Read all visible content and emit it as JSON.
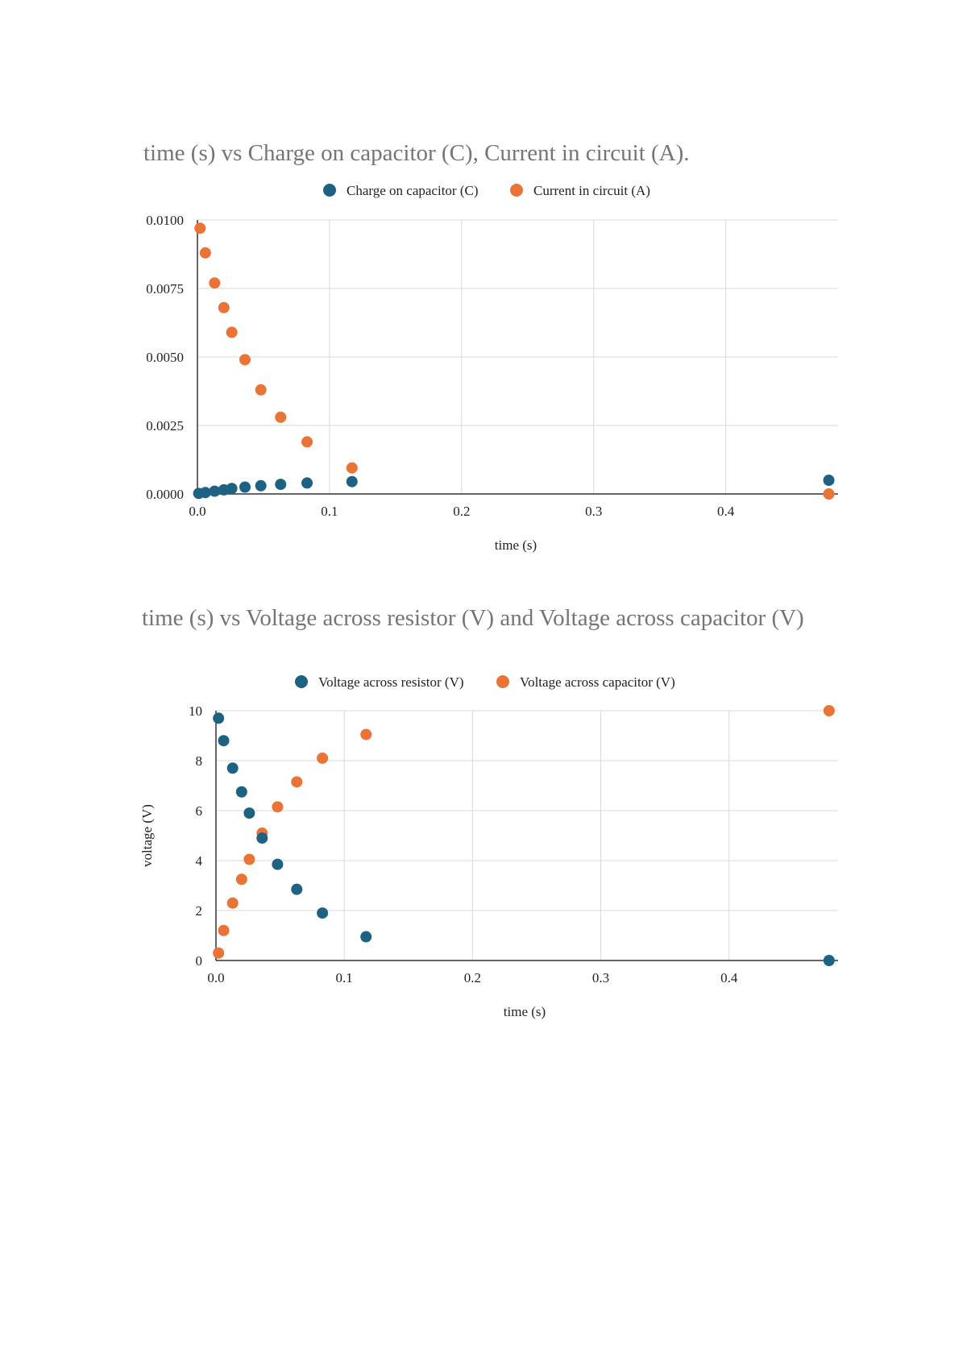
{
  "colors": {
    "series1": "#1d6282",
    "series2": "#ea7336",
    "grid": "#d9d9d9",
    "axis": "#333333",
    "title": "#757575"
  },
  "chart_data": [
    {
      "type": "scatter",
      "title": "time (s) vs Charge on capacitor (C), Current in circuit (A).",
      "xlabel": "time (s)",
      "ylabel": "",
      "xlim": [
        0,
        0.485
      ],
      "ylim": [
        0,
        0.01
      ],
      "xticks": [
        "0.0",
        "0.1",
        "0.2",
        "0.3",
        "0.4"
      ],
      "xtick_values": [
        0,
        0.1,
        0.2,
        0.3,
        0.4
      ],
      "yticks": [
        "0.0000",
        "0.0025",
        "0.0050",
        "0.0075",
        "0.0100"
      ],
      "ytick_values": [
        0,
        0.0025,
        0.005,
        0.0075,
        0.01
      ],
      "grid": true,
      "legend_position": "top",
      "series": [
        {
          "name": "Charge on capacitor (C)",
          "color": "#1d6282",
          "x": [
            0.001,
            0.006,
            0.013,
            0.02,
            0.026,
            0.036,
            0.048,
            0.063,
            0.083,
            0.117,
            0.478
          ],
          "y": [
            2e-05,
            5e-05,
            0.0001,
            0.00015,
            0.0002,
            0.00025,
            0.0003,
            0.00035,
            0.0004,
            0.00045,
            0.0005
          ]
        },
        {
          "name": "Current in circuit (A)",
          "color": "#ea7336",
          "x": [
            0.002,
            0.006,
            0.013,
            0.02,
            0.026,
            0.036,
            0.048,
            0.063,
            0.083,
            0.117,
            0.478
          ],
          "y": [
            0.0097,
            0.0088,
            0.0077,
            0.0068,
            0.0059,
            0.0049,
            0.0038,
            0.0028,
            0.0019,
            0.00095,
            0.0
          ]
        }
      ]
    },
    {
      "type": "scatter",
      "title": "time (s) vs Voltage across resistor (V) and Voltage across capacitor (V)",
      "xlabel": "time (s)",
      "ylabel": "voltage (V)",
      "xlim": [
        0,
        0.485
      ],
      "ylim": [
        0,
        10
      ],
      "xticks": [
        "0.0",
        "0.1",
        "0.2",
        "0.3",
        "0.4"
      ],
      "xtick_values": [
        0,
        0.1,
        0.2,
        0.3,
        0.4
      ],
      "yticks": [
        "0",
        "2",
        "4",
        "6",
        "8",
        "10"
      ],
      "ytick_values": [
        0,
        2,
        4,
        6,
        8,
        10
      ],
      "grid": true,
      "legend_position": "top",
      "series": [
        {
          "name": "Voltage across resistor (V)",
          "color": "#1d6282",
          "x": [
            0.002,
            0.006,
            0.013,
            0.02,
            0.026,
            0.036,
            0.048,
            0.063,
            0.083,
            0.117,
            0.478
          ],
          "y": [
            9.7,
            8.8,
            7.7,
            6.75,
            5.9,
            4.9,
            3.85,
            2.85,
            1.9,
            0.95,
            0.0
          ]
        },
        {
          "name": "Voltage across capacitor (V)",
          "color": "#ea7336",
          "x": [
            0.002,
            0.006,
            0.013,
            0.02,
            0.026,
            0.036,
            0.048,
            0.063,
            0.083,
            0.117,
            0.478
          ],
          "y": [
            0.3,
            1.2,
            2.3,
            3.25,
            4.05,
            5.1,
            6.15,
            7.15,
            8.1,
            9.05,
            10.0
          ]
        }
      ]
    }
  ]
}
